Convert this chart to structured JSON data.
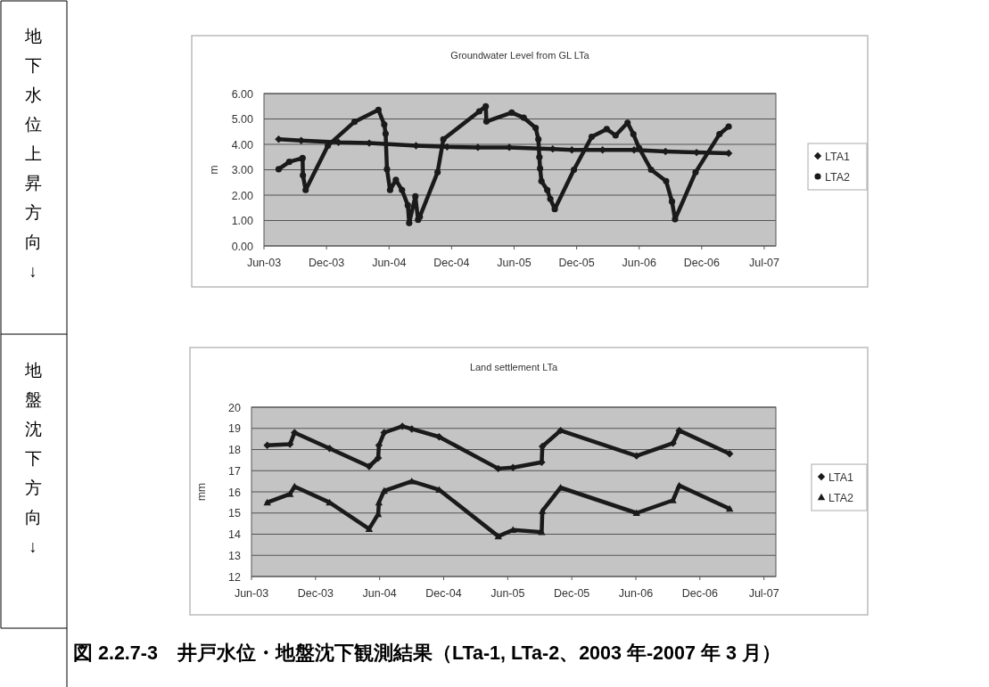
{
  "chart_data": [
    {
      "type": "line",
      "title": "Groundwater Level from GL LTa",
      "ylabel": "m",
      "xlim": [
        "2003-06-28",
        "2007-08-04"
      ],
      "ylim": [
        0,
        6
      ],
      "xticks": [
        {
          "value": "2003-06-28",
          "label": "Jun-03"
        },
        {
          "value": "2003-12-28",
          "label": "Dec-03"
        },
        {
          "value": "2004-06-28",
          "label": "Jun-04"
        },
        {
          "value": "2004-12-28",
          "label": "Dec-04"
        },
        {
          "value": "2005-06-29",
          "label": "Jun-05"
        },
        {
          "value": "2005-12-29",
          "label": "Dec-05"
        },
        {
          "value": "2006-06-30",
          "label": "Jun-06"
        },
        {
          "value": "2006-12-30",
          "label": "Dec-06"
        },
        {
          "value": "2007-07-01",
          "label": "Jul-07"
        }
      ],
      "yticks": [
        {
          "value": 0,
          "label": "0.00"
        },
        {
          "value": 1,
          "label": "1.00"
        },
        {
          "value": 2,
          "label": "2.00"
        },
        {
          "value": 3,
          "label": "3.00"
        },
        {
          "value": 4,
          "label": "4.00"
        },
        {
          "value": 5,
          "label": "5.00"
        },
        {
          "value": 6,
          "label": "6.00"
        }
      ],
      "grid": "y",
      "legend": "right",
      "line_style": "solid",
      "series": [
        {
          "name": "LTA1",
          "color": "#1a1a1a",
          "marker": "diamond",
          "x": [
            "2003-08-10",
            "2003-10-15",
            "2004-02-01",
            "2004-05-01",
            "2004-09-15",
            "2004-12-15",
            "2005-03-15",
            "2005-06-15",
            "2005-10-20",
            "2005-12-15",
            "2006-03-15",
            "2006-06-15",
            "2006-09-15",
            "2006-12-15",
            "2007-03-19"
          ],
          "values": [
            4.2,
            4.15,
            4.08,
            4.05,
            3.95,
            3.9,
            3.88,
            3.88,
            3.82,
            3.78,
            3.78,
            3.78,
            3.72,
            3.68,
            3.65
          ]
        },
        {
          "name": "LTA2",
          "color": "#1a1a1a",
          "marker": "circle",
          "x": [
            "2003-08-10",
            "2003-09-10",
            "2003-10-19",
            "2003-10-20",
            "2003-10-28",
            "2004-01-01",
            "2004-03-19",
            "2004-05-28",
            "2004-06-14",
            "2004-06-18",
            "2004-06-22",
            "2004-07-01",
            "2004-07-18",
            "2004-08-05",
            "2004-08-22",
            "2004-08-26",
            "2004-09-13",
            "2004-09-21",
            "2004-09-26",
            "2004-11-17",
            "2004-12-04",
            "2005-03-19",
            "2005-04-07",
            "2005-04-09",
            "2005-06-22",
            "2005-07-27",
            "2005-08-31",
            "2005-09-08",
            "2005-09-11",
            "2005-09-13",
            "2005-09-17",
            "2005-10-04",
            "2005-10-13",
            "2005-10-26",
            "2005-12-21",
            "2006-02-11",
            "2006-03-27",
            "2006-04-22",
            "2006-05-27",
            "2006-06-13",
            "2006-06-30",
            "2006-08-04",
            "2006-09-17",
            "2006-10-04",
            "2006-10-13",
            "2006-12-12",
            "2007-02-20",
            "2007-03-19"
          ],
          "values": [
            3.02,
            3.31,
            3.46,
            2.78,
            2.2,
            3.95,
            4.89,
            5.36,
            4.78,
            4.42,
            3.02,
            2.2,
            2.6,
            2.2,
            1.6,
            0.9,
            1.95,
            1.03,
            1.15,
            2.9,
            4.2,
            5.3,
            5.5,
            4.9,
            5.25,
            5.05,
            4.65,
            4.2,
            3.5,
            3.05,
            2.55,
            2.2,
            1.85,
            1.45,
            3.0,
            4.3,
            4.6,
            4.35,
            4.85,
            4.4,
            3.85,
            3.0,
            2.55,
            1.75,
            1.05,
            2.9,
            4.4,
            4.7
          ]
        }
      ],
      "annotations": [
        "地下水位上昇方向 ↓"
      ]
    },
    {
      "type": "line",
      "title": "Land settlement LTa",
      "ylabel": "mm",
      "xlim": [
        "2003-06-28",
        "2007-08-04"
      ],
      "ylim": [
        12,
        20
      ],
      "xticks": [
        {
          "value": "2003-06-28",
          "label": "Jun-03"
        },
        {
          "value": "2003-12-28",
          "label": "Dec-03"
        },
        {
          "value": "2004-06-28",
          "label": "Jun-04"
        },
        {
          "value": "2004-12-28",
          "label": "Dec-04"
        },
        {
          "value": "2005-06-29",
          "label": "Jun-05"
        },
        {
          "value": "2005-12-29",
          "label": "Dec-05"
        },
        {
          "value": "2006-06-30",
          "label": "Jun-06"
        },
        {
          "value": "2006-12-30",
          "label": "Dec-06"
        },
        {
          "value": "2007-07-01",
          "label": "Jul-07"
        }
      ],
      "yticks": [
        12,
        13,
        14,
        15,
        16,
        17,
        18,
        19,
        20
      ],
      "grid": "y",
      "legend": "right",
      "line_style": "solid",
      "series": [
        {
          "name": "LTA1",
          "color": "#1a1a1a",
          "marker": "diamond",
          "x": [
            "2003-08-12",
            "2003-10-16",
            "2003-10-29",
            "2004-02-06",
            "2004-05-29",
            "2004-06-24",
            "2004-06-26",
            "2004-07-11",
            "2004-09-01",
            "2004-09-28",
            "2004-12-15",
            "2005-06-02",
            "2005-07-14",
            "2005-10-04",
            "2005-10-06",
            "2005-11-27",
            "2006-07-02",
            "2006-10-14",
            "2006-11-01",
            "2007-03-25"
          ],
          "values": [
            18.2,
            18.25,
            18.8,
            18.05,
            17.2,
            17.6,
            18.2,
            18.8,
            19.1,
            18.97,
            18.6,
            17.1,
            17.15,
            17.4,
            18.15,
            18.9,
            17.7,
            18.3,
            18.9,
            17.8
          ]
        },
        {
          "name": "LTA2",
          "color": "#1a1a1a",
          "marker": "triangle",
          "x": [
            "2003-08-12",
            "2003-10-16",
            "2003-10-29",
            "2004-02-06",
            "2004-05-29",
            "2004-06-24",
            "2004-06-26",
            "2004-07-11",
            "2004-09-28",
            "2004-12-15",
            "2005-06-02",
            "2005-07-14",
            "2005-10-04",
            "2005-10-06",
            "2005-11-27",
            "2006-07-02",
            "2006-10-14",
            "2006-11-01",
            "2007-03-25"
          ],
          "values": [
            15.5,
            15.9,
            16.25,
            15.5,
            14.25,
            14.95,
            15.5,
            16.05,
            16.5,
            16.1,
            13.9,
            14.2,
            14.1,
            15.1,
            16.2,
            15.0,
            15.6,
            16.3,
            15.2
          ]
        }
      ],
      "annotations": [
        "地盤沈下方向 ↓",
        "図 2.2.7-3　井戸水位・地盤沈下観測結果（LTa-1, LTa-2、2003 年-2007 年 3 月）"
      ]
    }
  ]
}
